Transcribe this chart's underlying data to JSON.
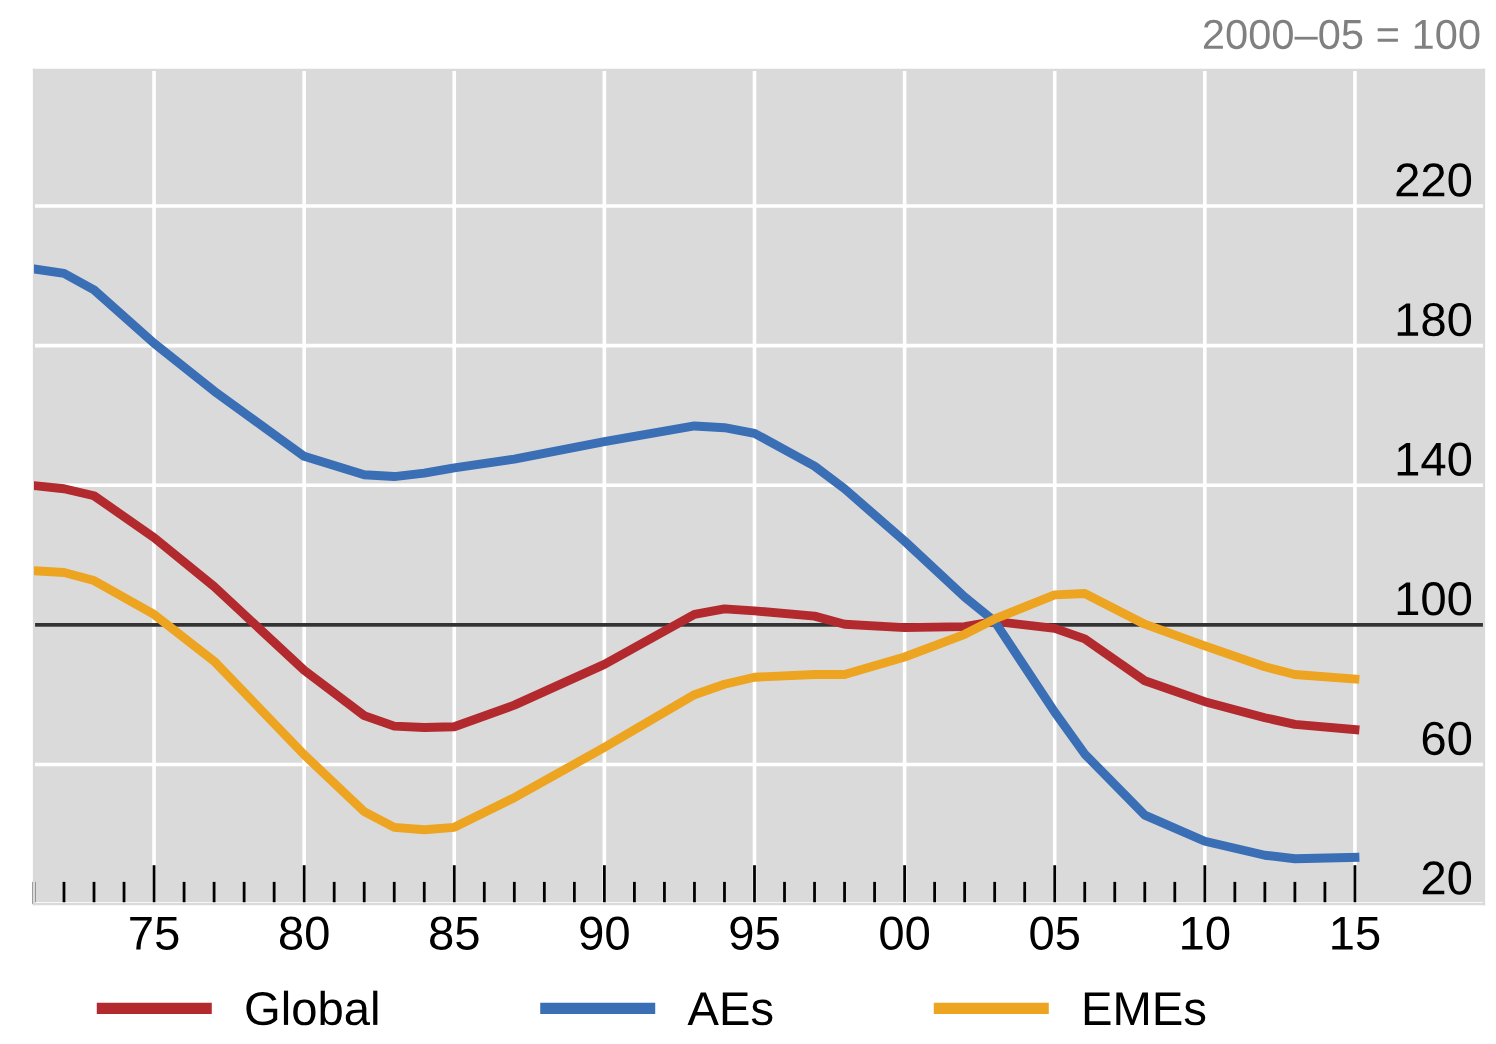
{
  "chart_data": {
    "type": "line",
    "x": [
      1971,
      1972,
      1973,
      1975,
      1977,
      1980,
      1982,
      1983,
      1984,
      1985,
      1987,
      1990,
      1993,
      1994,
      1995,
      1997,
      1998,
      2000,
      2002,
      2003,
      2005,
      2006,
      2008,
      2010,
      2012,
      2013,
      2015
    ],
    "series": [
      {
        "name": "Global",
        "color": "#b22a2e",
        "values": [
          139.9,
          139,
          137,
          125,
          111,
          87,
          74,
          71,
          70.6,
          70.8,
          77,
          88.7,
          103,
          104.6,
          104,
          102.5,
          100.2,
          99.2,
          99.5,
          101,
          99,
          96,
          84,
          78,
          73.4,
          71.5,
          70
        ]
      },
      {
        "name": "AEs",
        "color": "#3a6eb5",
        "values": [
          202,
          200.7,
          196,
          180.7,
          167,
          148.3,
          143,
          142.5,
          143.5,
          145,
          147.5,
          152.5,
          157,
          156.5,
          154.9,
          145.5,
          139,
          124,
          108,
          101,
          75,
          63,
          45.5,
          38,
          34,
          33,
          33.4
        ]
      },
      {
        "name": "EMEs",
        "color": "#eda420",
        "values": [
          115.5,
          115,
          112.7,
          103,
          89.6,
          62.8,
          46.5,
          42,
          41.3,
          42,
          50.5,
          64.9,
          80,
          83,
          85,
          85.8,
          85.8,
          90.8,
          97.3,
          101.7,
          108.6,
          109,
          100.2,
          94,
          88,
          85.8,
          84.5
        ]
      }
    ],
    "xlim": [
      1971,
      2019.3
    ],
    "xticks": [
      {
        "value": 1971,
        "label": null
      },
      {
        "value": 1972,
        "label": null
      },
      {
        "value": 1973,
        "label": null
      },
      {
        "value": 1974,
        "label": null
      },
      {
        "value": 1975,
        "label": "75"
      },
      {
        "value": 1976,
        "label": null
      },
      {
        "value": 1977,
        "label": null
      },
      {
        "value": 1978,
        "label": null
      },
      {
        "value": 1979,
        "label": null
      },
      {
        "value": 1980,
        "label": "80"
      },
      {
        "value": 1981,
        "label": null
      },
      {
        "value": 1982,
        "label": null
      },
      {
        "value": 1983,
        "label": null
      },
      {
        "value": 1984,
        "label": null
      },
      {
        "value": 1985,
        "label": "85"
      },
      {
        "value": 1986,
        "label": null
      },
      {
        "value": 1987,
        "label": null
      },
      {
        "value": 1988,
        "label": null
      },
      {
        "value": 1989,
        "label": null
      },
      {
        "value": 1990,
        "label": "90"
      },
      {
        "value": 1991,
        "label": null
      },
      {
        "value": 1992,
        "label": null
      },
      {
        "value": 1993,
        "label": null
      },
      {
        "value": 1994,
        "label": null
      },
      {
        "value": 1995,
        "label": "95"
      },
      {
        "value": 1996,
        "label": null
      },
      {
        "value": 1997,
        "label": null
      },
      {
        "value": 1998,
        "label": null
      },
      {
        "value": 1999,
        "label": null
      },
      {
        "value": 2000,
        "label": "00"
      },
      {
        "value": 2001,
        "label": null
      },
      {
        "value": 2002,
        "label": null
      },
      {
        "value": 2003,
        "label": null
      },
      {
        "value": 2004,
        "label": null
      },
      {
        "value": 2005,
        "label": "05"
      },
      {
        "value": 2006,
        "label": null
      },
      {
        "value": 2007,
        "label": null
      },
      {
        "value": 2008,
        "label": null
      },
      {
        "value": 2009,
        "label": null
      },
      {
        "value": 2010,
        "label": "10"
      },
      {
        "value": 2011,
        "label": null
      },
      {
        "value": 2012,
        "label": null
      },
      {
        "value": 2013,
        "label": null
      },
      {
        "value": 2014,
        "label": null
      },
      {
        "value": 2015,
        "label": "15"
      }
    ],
    "ylim": [
      20,
      259
    ],
    "yticks": [
      20,
      60,
      100,
      140,
      180,
      220
    ],
    "ref_lines": [
      {
        "axis": "y",
        "value": 100,
        "color": "#333333"
      }
    ],
    "annotations": [
      "2000–05 = 100"
    ],
    "grid": true,
    "legend": "bottom left",
    "line_style": "solid",
    "marker": "none"
  }
}
